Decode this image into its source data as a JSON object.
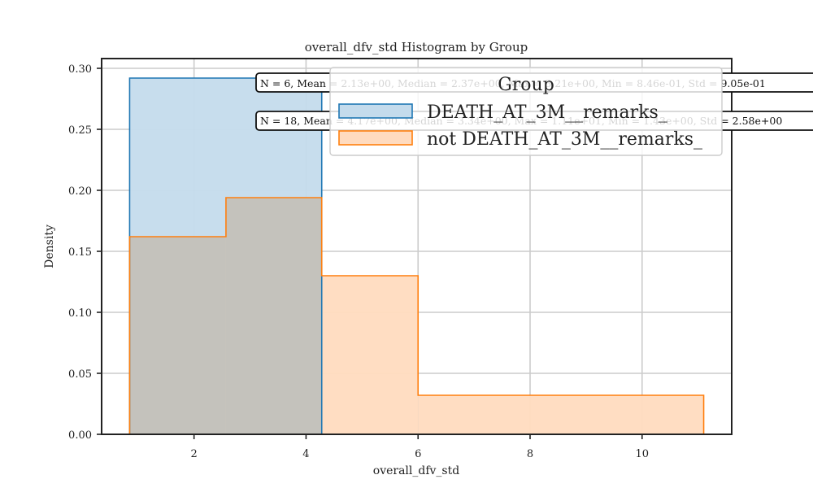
{
  "chart_data": {
    "type": "bar",
    "title": "overall_dfv_std Histogram by Group",
    "xlabel": "overall_dfv_std",
    "ylabel": "Density",
    "xlim": [
      0.35,
      11.6
    ],
    "ylim": [
      0,
      0.308
    ],
    "x_ticks": [
      2,
      4,
      6,
      8,
      10
    ],
    "y_ticks": [
      0.0,
      0.05,
      0.1,
      0.15,
      0.2,
      0.25,
      0.3
    ],
    "grid": true,
    "legend": {
      "title": "Group",
      "placement": "top-right",
      "entries": [
        "DEATH_AT_3M__remarks_",
        "not DEATH_AT_3M__remarks_"
      ]
    },
    "series": [
      {
        "name": "DEATH_AT_3M__remarks_",
        "color": "#1f77b4",
        "fill": "#c4dbec",
        "bins": [
          {
            "x0": 0.85,
            "x1": 4.28,
            "density": 0.292
          }
        ]
      },
      {
        "name": "not DEATH_AT_3M__remarks_",
        "color": "#ff7f0e",
        "fill": "#ffdbbf",
        "bins": [
          {
            "x0": 0.85,
            "x1": 2.57,
            "density": 0.162
          },
          {
            "x0": 2.57,
            "x1": 4.28,
            "density": 0.194
          },
          {
            "x0": 4.28,
            "x1": 6.0,
            "density": 0.13
          },
          {
            "x0": 6.0,
            "x1": 11.1,
            "density": 0.032
          }
        ]
      }
    ],
    "overlap_fill": "#c4c2bc",
    "annotations": [
      "N = 6, Mean = 2.13e+00, Median = 2.37e+00, Max = 3.21e+00, Min = 8.46e-01, Std = 9.05e-01",
      "N = 18, Mean = 4.17e+00, Median = 3.34e+00, Max = 1.11e+01, Min = 1.43e+00, Std = 2.58e+00"
    ]
  }
}
